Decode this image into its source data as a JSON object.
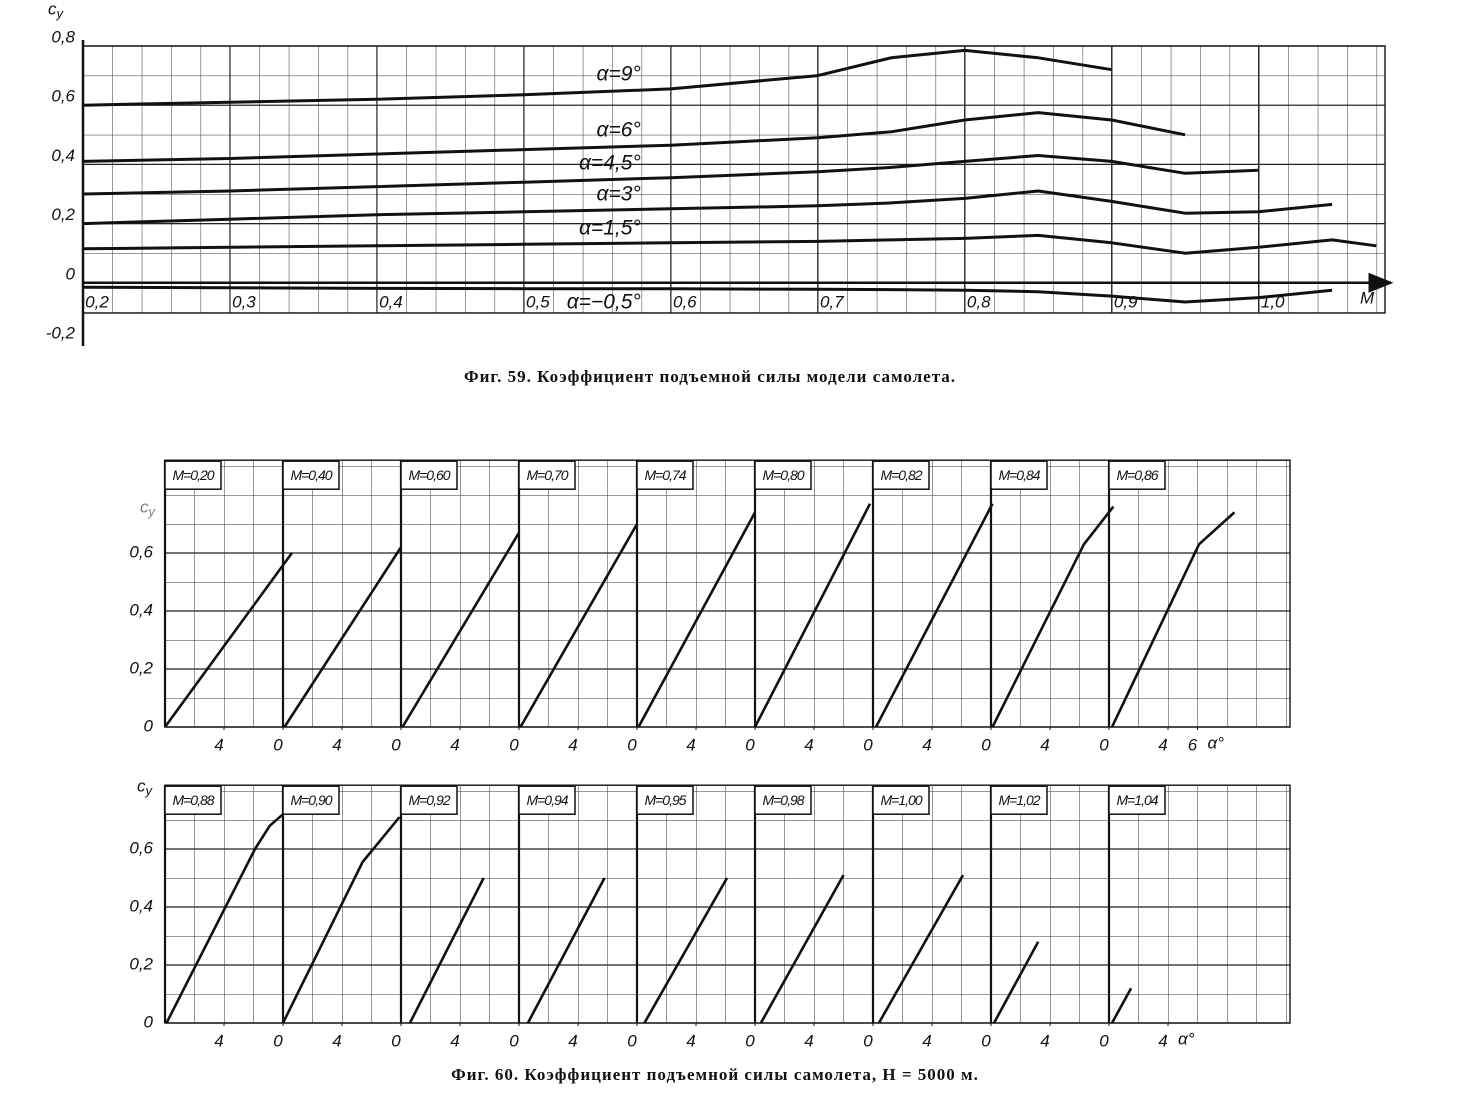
{
  "chart_data": [
    {
      "type": "line",
      "y_label": "cy",
      "x_label": "M",
      "caption": "Фиг. 59. Коэффициент подъемной силы модели самолета.",
      "x": [
        0.2,
        0.3,
        0.4,
        0.5,
        0.6,
        0.7,
        0.75,
        0.8,
        0.85,
        0.9,
        0.95,
        1.0,
        1.05,
        1.08
      ],
      "series": [
        {
          "name": "α=9°",
          "color": "#111111",
          "values": [
            0.6,
            0.61,
            0.62,
            0.635,
            0.655,
            0.7,
            0.76,
            0.785,
            0.76,
            0.72,
            null,
            null,
            null,
            null
          ]
        },
        {
          "name": "α=6°",
          "color": "#111111",
          "values": [
            0.41,
            0.42,
            0.435,
            0.45,
            0.465,
            0.49,
            0.51,
            0.55,
            0.575,
            0.55,
            0.5,
            null,
            null,
            null
          ]
        },
        {
          "name": "α=4,5°",
          "color": "#111111",
          "values": [
            0.3,
            0.31,
            0.325,
            0.34,
            0.355,
            0.375,
            0.39,
            0.41,
            0.43,
            0.41,
            0.37,
            0.38,
            null,
            null
          ]
        },
        {
          "name": "α=3°",
          "color": "#111111",
          "values": [
            0.2,
            0.215,
            0.23,
            0.24,
            0.25,
            0.26,
            0.27,
            0.285,
            0.31,
            0.275,
            0.235,
            0.24,
            0.265,
            null
          ]
        },
        {
          "name": "α=1,5°",
          "color": "#111111",
          "values": [
            0.115,
            0.12,
            0.125,
            0.13,
            0.135,
            0.14,
            0.145,
            0.15,
            0.16,
            0.135,
            0.1,
            0.12,
            0.145,
            0.125
          ]
        },
        {
          "name": "α=−0,5°",
          "color": "#111111",
          "values": [
            -0.015,
            -0.017,
            -0.019,
            -0.02,
            -0.02,
            -0.022,
            -0.023,
            -0.025,
            -0.03,
            -0.045,
            -0.065,
            -0.05,
            -0.025,
            null
          ]
        }
      ],
      "xlim": [
        0.2,
        1.086
      ],
      "ylim": [
        -0.2,
        0.8
      ],
      "xticks": [
        {
          "value": 0.2,
          "label": "0,2"
        },
        {
          "value": 0.3,
          "label": "0,3"
        },
        {
          "value": 0.4,
          "label": "0,4"
        },
        {
          "value": 0.5,
          "label": "0,5"
        },
        {
          "value": 0.6,
          "label": "0,6"
        },
        {
          "value": 0.7,
          "label": "0,7"
        },
        {
          "value": 0.8,
          "label": "0,8"
        },
        {
          "value": 0.9,
          "label": "0,9"
        },
        {
          "value": 1.0,
          "label": "1,0"
        }
      ],
      "yticks": [
        {
          "value": -0.2,
          "label": "-0,2"
        },
        0,
        {
          "value": 0.2,
          "label": "0,2"
        },
        {
          "value": 0.4,
          "label": "0,4"
        },
        {
          "value": 0.6,
          "label": "0,6"
        },
        {
          "value": 0.8,
          "label": "0,8"
        }
      ],
      "grid": true
    },
    {
      "type": "panels",
      "y_label": "cy",
      "x_label": "α°",
      "xlim": [
        0,
        8
      ],
      "ylim": [
        0,
        0.92
      ],
      "yticks": [
        0,
        {
          "value": 0.2,
          "label": "0,2"
        },
        {
          "value": 0.4,
          "label": "0,4"
        },
        {
          "value": 0.6,
          "label": "0,6"
        }
      ],
      "grid": true,
      "panels": [
        {
          "label": "M=0,20",
          "xticks": [
            4
          ],
          "x": [
            0,
            8.6
          ],
          "values": [
            0,
            0.6
          ]
        },
        {
          "label": "M=0,40",
          "xticks": [
            0,
            4
          ],
          "x": [
            0.1,
            8.0
          ],
          "values": [
            0,
            0.62
          ]
        },
        {
          "label": "M=0,60",
          "xticks": [
            0,
            4
          ],
          "x": [
            0.1,
            8.0
          ],
          "values": [
            0,
            0.67
          ]
        },
        {
          "label": "M=0,70",
          "xticks": [
            0,
            4
          ],
          "x": [
            0.1,
            8.0
          ],
          "values": [
            0,
            0.7
          ]
        },
        {
          "label": "M=0,74",
          "xticks": [
            0,
            4
          ],
          "x": [
            0.1,
            8.0
          ],
          "values": [
            0,
            0.74
          ]
        },
        {
          "label": "M=0,80",
          "xticks": [
            0,
            4
          ],
          "x": [
            0,
            7.8
          ],
          "values": [
            0,
            0.77
          ]
        },
        {
          "label": "M=0,82",
          "xticks": [
            0,
            4
          ],
          "x": [
            0.2,
            8.1
          ],
          "values": [
            0,
            0.77
          ]
        },
        {
          "label": "M=0,84",
          "xticks": [
            0,
            4
          ],
          "x": [
            0.1,
            6.3,
            8.3
          ],
          "values": [
            0,
            0.63,
            0.76
          ]
        },
        {
          "label": "M=0,86",
          "xticks": [
            0,
            4,
            6
          ],
          "x": [
            0.2,
            6.1,
            8.5
          ],
          "values": [
            0,
            0.63,
            0.74
          ]
        }
      ]
    },
    {
      "type": "panels",
      "y_label": "cy",
      "x_label": "α°",
      "caption": "Фиг. 60. Коэффициент подъемной силы самолета, H = 5000 м.",
      "xlim": [
        0,
        8
      ],
      "ylim": [
        0,
        0.82
      ],
      "yticks": [
        0,
        {
          "value": 0.2,
          "label": "0,2"
        },
        {
          "value": 0.4,
          "label": "0,4"
        },
        {
          "value": 0.6,
          "label": "0,6"
        }
      ],
      "grid": true,
      "panels": [
        {
          "label": "M=0,88",
          "xticks": [
            4
          ],
          "x": [
            0.1,
            6.1,
            7.1,
            8.0
          ],
          "values": [
            0,
            0.6,
            0.68,
            0.72
          ]
        },
        {
          "label": "M=0,90",
          "xticks": [
            0,
            4
          ],
          "x": [
            0,
            5.4,
            7.9
          ],
          "values": [
            0,
            0.555,
            0.71
          ]
        },
        {
          "label": "M=0,92",
          "xticks": [
            0,
            4
          ],
          "x": [
            0.6,
            5.6
          ],
          "values": [
            0,
            0.5
          ]
        },
        {
          "label": "M=0,94",
          "xticks": [
            0,
            4
          ],
          "x": [
            0.6,
            5.8
          ],
          "values": [
            0,
            0.5
          ]
        },
        {
          "label": "M=0,95",
          "xticks": [
            0,
            4
          ],
          "x": [
            0.5,
            6.1
          ],
          "values": [
            0,
            0.5
          ]
        },
        {
          "label": "M=0,98",
          "xticks": [
            0,
            4
          ],
          "x": [
            0.4,
            6.0
          ],
          "values": [
            0,
            0.51
          ]
        },
        {
          "label": "M=1,00",
          "xticks": [
            0,
            4
          ],
          "x": [
            0.4,
            6.1
          ],
          "values": [
            0,
            0.51
          ]
        },
        {
          "label": "M=1,02",
          "xticks": [
            0,
            4
          ],
          "x": [
            0.2,
            3.2
          ],
          "values": [
            0,
            0.28
          ]
        },
        {
          "label": "M=1,04",
          "xticks": [
            0,
            4
          ],
          "x": [
            0.2,
            1.5
          ],
          "values": [
            0,
            0.12
          ]
        }
      ]
    }
  ]
}
